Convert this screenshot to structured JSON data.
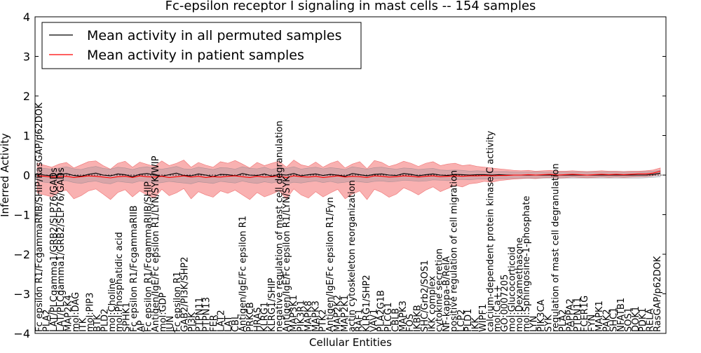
{
  "chart_data": {
    "type": "line",
    "title": "Fc-epsilon receptor I signaling in mast cells -- 154 samples",
    "xlabel": "Cellular Entities",
    "ylabel": "Inferred Activity",
    "ylim": [
      -4,
      4
    ],
    "yticks": [
      -4,
      -3,
      -2,
      -1,
      0,
      1,
      2,
      3,
      4
    ],
    "ytick_labels": [
      "−4",
      "−3",
      "−2",
      "−1",
      "0",
      "1",
      "2",
      "3",
      "4"
    ],
    "grid": false,
    "legend_position": "top-left",
    "n_points": 154,
    "x_labels": [
      "Fc epsilon R1/FcgammaRIIB/SHIP/RasGAP/p62DOK",
      "PLA2",
      "LAT/PLCgamma1/GRB2/SLP76/GADs",
      "LAT/PLCgamma1/GRB2/SLP76/GADs",
      "MAP2K4",
      "mol:DAG",
      "ITK",
      "mol:PIP3",
      "BTK",
      "PLD2",
      "mol:Choline",
      "mol:Phosphatidic acid",
      "SPHK1",
      "Fc epsilon R1/FcgammaRIIB",
      "AP",
      "Fc epsilon R1/FcgammaRIIB/SHIP",
      "Antigen/IgE/Fc epsilon R1/LYN/SYK/WIP",
      "mol:GDP",
      "JUN",
      "Fc epsilon R1",
      "GAB2/PI3K/SHP2",
      "PI3K",
      "PTPN11",
      "PTPN13",
      "FER",
      "LAT2",
      "LAT",
      "CBL",
      "Antigen/IgE/Fc epsilon R1",
      "PRKCB",
      "HRAS",
      "KLRG1",
      "KLRG1/SHIP",
      "negative regulation of mast cell degranulation",
      "Antigen/IgE/Fc epsilon R1/LYN/SYK",
      "MAP3K1",
      "PIK3R1",
      "MAPK8",
      "MAPK3",
      "PTK2",
      "Antigen/IgE/Fc epsilon R1/Fyn",
      "MAP2K2",
      "MAP2K1",
      "actin cytoskeleton reorganization",
      "RAF1",
      "KLRG1/SHP2",
      "VAV1",
      "PLA2G1B",
      "PLCG1",
      "CBLB",
      "MAPK3",
      "FOS",
      "IKBKB",
      "SHC/Grb2/SOS1",
      "IKK complex",
      "cytokine secretion",
      "NF-kappa-B/RelA",
      "positive regulation of cell migration",
      "LCP2",
      "PLD1",
      "IKK",
      "WIPF1",
      "calcium-dependent protein kinase C activity",
      "mol:Ca++",
      "GO:0007205",
      "mol:Glucocorticoid",
      "mol:Dexamethasone",
      "mol:Sphingosine-1-phosphate",
      "LYN",
      "PIK3CA",
      "SYK",
      "regulation of mast cell degranulation",
      "PLA2",
      "PAPPA2",
      "PTPN11",
      "FCER1G",
      "FYN",
      "MAPK1",
      "PAK2",
      "SHC1",
      "NFATB1",
      "SOS1",
      "DOK1",
      "PDK1",
      "RELA",
      "RasGAP/p62DOK"
    ],
    "series": [
      {
        "name": "Mean activity in all permuted samples",
        "color": "#000000",
        "values": [
          0.03,
          0.0,
          -0.02,
          0.01,
          0.04,
          -0.01,
          -0.03,
          0.02,
          0.05,
          0.0,
          -0.02,
          0.03,
          0.01,
          -0.04,
          0.02,
          0.04,
          0.0,
          -0.03,
          0.01,
          0.05,
          -0.01,
          -0.02,
          0.03,
          0.0,
          -0.04,
          0.02,
          0.01,
          -0.02,
          0.04,
          0.0,
          -0.01,
          0.03,
          -0.03,
          0.02,
          0.0,
          0.04,
          -0.02,
          0.01,
          0.03,
          -0.01,
          0.02,
          0.0,
          -0.03,
          0.04,
          0.01,
          -0.02,
          0.02,
          0.03,
          0.0,
          -0.01,
          0.04,
          0.02,
          -0.02,
          0.01,
          0.03,
          0.0,
          -0.01,
          0.02,
          0.01,
          0.0,
          0.01,
          0.01,
          0.0,
          0.01,
          0.0,
          0.0,
          0.0,
          0.0,
          0.0,
          0.0,
          0.0,
          0.0,
          0.0,
          0.0,
          0.0,
          0.0,
          0.0,
          0.0,
          0.0,
          0.0,
          0.0,
          0.0,
          0.0,
          0.0,
          0.02,
          0.05
        ],
        "band_low": [
          -0.15,
          -0.18,
          -0.2,
          -0.16,
          -0.14,
          -0.19,
          -0.21,
          -0.17,
          -0.15,
          -0.2,
          -0.22,
          -0.16,
          -0.18,
          -0.2,
          -0.15,
          -0.17,
          -0.21,
          -0.19,
          -0.16,
          -0.18,
          -0.2,
          -0.22,
          -0.17,
          -0.19,
          -0.21,
          -0.16,
          -0.18,
          -0.2,
          -0.15,
          -0.19,
          -0.21,
          -0.17,
          -0.2,
          -0.16,
          -0.22,
          -0.18,
          -0.2,
          -0.17,
          -0.15,
          -0.19,
          -0.16,
          -0.2,
          -0.18,
          -0.15,
          -0.17,
          -0.19,
          -0.16,
          -0.15,
          -0.17,
          -0.16,
          -0.13,
          -0.14,
          -0.16,
          -0.15,
          -0.12,
          -0.13,
          -0.14,
          -0.12,
          -0.11,
          -0.12,
          -0.1,
          -0.1,
          -0.09,
          -0.09,
          -0.09,
          -0.08,
          -0.08,
          -0.08,
          -0.08,
          -0.08,
          -0.08,
          -0.08,
          -0.08,
          -0.08,
          -0.08,
          -0.08,
          -0.08,
          -0.08,
          -0.08,
          -0.08,
          -0.08,
          -0.08,
          -0.08,
          -0.07,
          -0.06,
          -0.04
        ],
        "band_high": [
          0.18,
          0.17,
          0.15,
          0.18,
          0.21,
          0.16,
          0.14,
          0.19,
          0.22,
          0.17,
          0.15,
          0.2,
          0.18,
          0.14,
          0.19,
          0.21,
          0.17,
          0.15,
          0.18,
          0.22,
          0.16,
          0.15,
          0.2,
          0.17,
          0.14,
          0.19,
          0.18,
          0.15,
          0.21,
          0.17,
          0.16,
          0.2,
          0.14,
          0.19,
          0.17,
          0.21,
          0.15,
          0.18,
          0.2,
          0.16,
          0.19,
          0.17,
          0.14,
          0.21,
          0.18,
          0.15,
          0.19,
          0.2,
          0.17,
          0.15,
          0.18,
          0.17,
          0.14,
          0.16,
          0.17,
          0.13,
          0.12,
          0.13,
          0.12,
          0.1,
          0.11,
          0.1,
          0.09,
          0.09,
          0.09,
          0.08,
          0.08,
          0.08,
          0.08,
          0.08,
          0.08,
          0.08,
          0.08,
          0.08,
          0.08,
          0.08,
          0.08,
          0.08,
          0.08,
          0.08,
          0.08,
          0.08,
          0.08,
          0.09,
          0.1,
          0.12
        ]
      },
      {
        "name": "Mean activity in patient samples",
        "color": "#ff0000",
        "values": [
          -0.02,
          -0.03,
          -0.05,
          -0.04,
          -0.03,
          -0.06,
          -0.04,
          -0.02,
          -0.03,
          -0.05,
          -0.07,
          -0.04,
          -0.03,
          -0.06,
          -0.02,
          -0.04,
          -0.05,
          -0.03,
          -0.06,
          -0.04,
          -0.02,
          -0.05,
          -0.03,
          -0.06,
          -0.04,
          -0.05,
          -0.03,
          -0.02,
          -0.04,
          -0.06,
          -0.03,
          -0.05,
          -0.04,
          -0.03,
          -0.06,
          -0.02,
          -0.04,
          -0.05,
          -0.03,
          -0.06,
          -0.04,
          -0.02,
          -0.05,
          -0.03,
          -0.04,
          -0.06,
          -0.02,
          -0.03,
          -0.05,
          -0.04,
          -0.02,
          -0.03,
          -0.05,
          -0.03,
          -0.02,
          -0.04,
          -0.03,
          -0.02,
          -0.03,
          -0.02,
          -0.02,
          -0.01,
          -0.02,
          -0.01,
          -0.01,
          0.0,
          0.0,
          0.01,
          0.0,
          0.01,
          0.02,
          0.0,
          0.01,
          0.02,
          0.01,
          0.0,
          0.01,
          0.02,
          0.01,
          0.02,
          0.01,
          0.02,
          0.03,
          0.03,
          0.05,
          0.1
        ],
        "band_low": [
          -0.45,
          -0.5,
          -0.55,
          -0.42,
          -0.38,
          -0.6,
          -0.52,
          -0.4,
          -0.35,
          -0.48,
          -0.62,
          -0.44,
          -0.37,
          -0.55,
          -0.4,
          -0.5,
          -0.58,
          -0.36,
          -0.52,
          -0.45,
          -0.34,
          -0.6,
          -0.42,
          -0.5,
          -0.56,
          -0.4,
          -0.46,
          -0.38,
          -0.5,
          -0.62,
          -0.44,
          -0.55,
          -0.48,
          -0.4,
          -0.6,
          -0.35,
          -0.5,
          -0.58,
          -0.42,
          -0.55,
          -0.45,
          -0.36,
          -0.6,
          -0.48,
          -0.4,
          -0.62,
          -0.36,
          -0.44,
          -0.56,
          -0.48,
          -0.32,
          -0.4,
          -0.5,
          -0.38,
          -0.3,
          -0.42,
          -0.34,
          -0.26,
          -0.3,
          -0.22,
          -0.2,
          -0.16,
          -0.18,
          -0.14,
          -0.12,
          -0.1,
          -0.09,
          -0.08,
          -0.09,
          -0.07,
          -0.06,
          -0.08,
          -0.07,
          -0.05,
          -0.06,
          -0.07,
          -0.06,
          -0.05,
          -0.06,
          -0.05,
          -0.06,
          -0.05,
          -0.04,
          -0.04,
          -0.02,
          0.02
        ],
        "band_high": [
          0.3,
          0.25,
          0.2,
          0.28,
          0.32,
          0.18,
          0.26,
          0.34,
          0.36,
          0.24,
          0.15,
          0.3,
          0.35,
          0.2,
          0.33,
          0.27,
          0.22,
          0.36,
          0.24,
          0.3,
          0.38,
          0.2,
          0.32,
          0.25,
          0.2,
          0.34,
          0.3,
          0.37,
          0.28,
          0.18,
          0.32,
          0.24,
          0.3,
          0.35,
          0.2,
          0.38,
          0.26,
          0.22,
          0.33,
          0.2,
          0.3,
          0.36,
          0.18,
          0.28,
          0.34,
          0.16,
          0.37,
          0.32,
          0.22,
          0.27,
          0.35,
          0.3,
          0.22,
          0.3,
          0.34,
          0.24,
          0.28,
          0.3,
          0.24,
          0.26,
          0.22,
          0.2,
          0.18,
          0.16,
          0.14,
          0.12,
          0.11,
          0.12,
          0.1,
          0.11,
          0.12,
          0.1,
          0.1,
          0.11,
          0.1,
          0.09,
          0.1,
          0.11,
          0.1,
          0.1,
          0.09,
          0.1,
          0.1,
          0.11,
          0.13,
          0.18
        ]
      }
    ]
  }
}
